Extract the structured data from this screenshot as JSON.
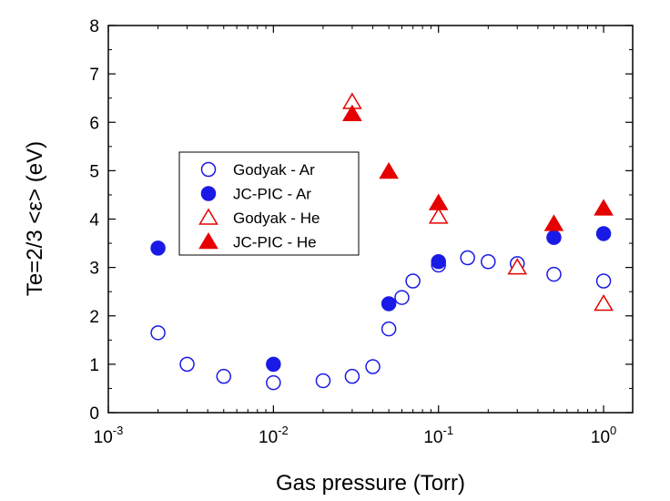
{
  "chart_data": {
    "type": "scatter",
    "title": "",
    "xlabel": "Gas pressure (Torr)",
    "ylabel": "Te=2/3 <ε> (eV)",
    "x_scale": "log",
    "xlim": [
      0.001,
      1.5
    ],
    "ylim": [
      0,
      8
    ],
    "grid": false,
    "legend_position": "center-left",
    "x_ticks": [
      {
        "value": 0.001,
        "base": "10",
        "exp": "-3"
      },
      {
        "value": 0.01,
        "base": "10",
        "exp": "-2"
      },
      {
        "value": 0.1,
        "base": "10",
        "exp": "-1"
      },
      {
        "value": 1,
        "base": "10",
        "exp": "0"
      }
    ],
    "y_ticks": [
      "0",
      "1",
      "2",
      "3",
      "4",
      "5",
      "6",
      "7",
      "8"
    ],
    "series": [
      {
        "name": "Godyak - Ar",
        "marker": "circle-open",
        "color": "#1a1ae6",
        "x": [
          0.002,
          0.003,
          0.005,
          0.01,
          0.02,
          0.03,
          0.04,
          0.05,
          0.06,
          0.07,
          0.1,
          0.15,
          0.2,
          0.3,
          0.5,
          1.0
        ],
        "y": [
          1.65,
          1.0,
          0.75,
          0.62,
          0.66,
          0.75,
          0.95,
          1.73,
          2.38,
          2.72,
          3.05,
          3.2,
          3.12,
          3.08,
          2.86,
          2.72
        ]
      },
      {
        "name": "JC-PIC - Ar",
        "marker": "circle-filled",
        "color": "#1a1ae6",
        "x": [
          0.002,
          0.01,
          0.05,
          0.1,
          0.5,
          1.0
        ],
        "y": [
          3.4,
          1.0,
          2.25,
          3.12,
          3.62,
          3.7
        ]
      },
      {
        "name": "Godyak - He",
        "marker": "triangle-open",
        "color": "#e60000",
        "x": [
          0.03,
          0.1,
          0.3,
          1.0
        ],
        "y": [
          6.42,
          4.05,
          3.0,
          2.25
        ]
      },
      {
        "name": "JC-PIC - He",
        "marker": "triangle-filled",
        "color": "#e60000",
        "x": [
          0.03,
          0.05,
          0.1,
          0.5,
          1.0
        ],
        "y": [
          6.17,
          4.98,
          4.33,
          3.9,
          4.22
        ]
      }
    ]
  }
}
